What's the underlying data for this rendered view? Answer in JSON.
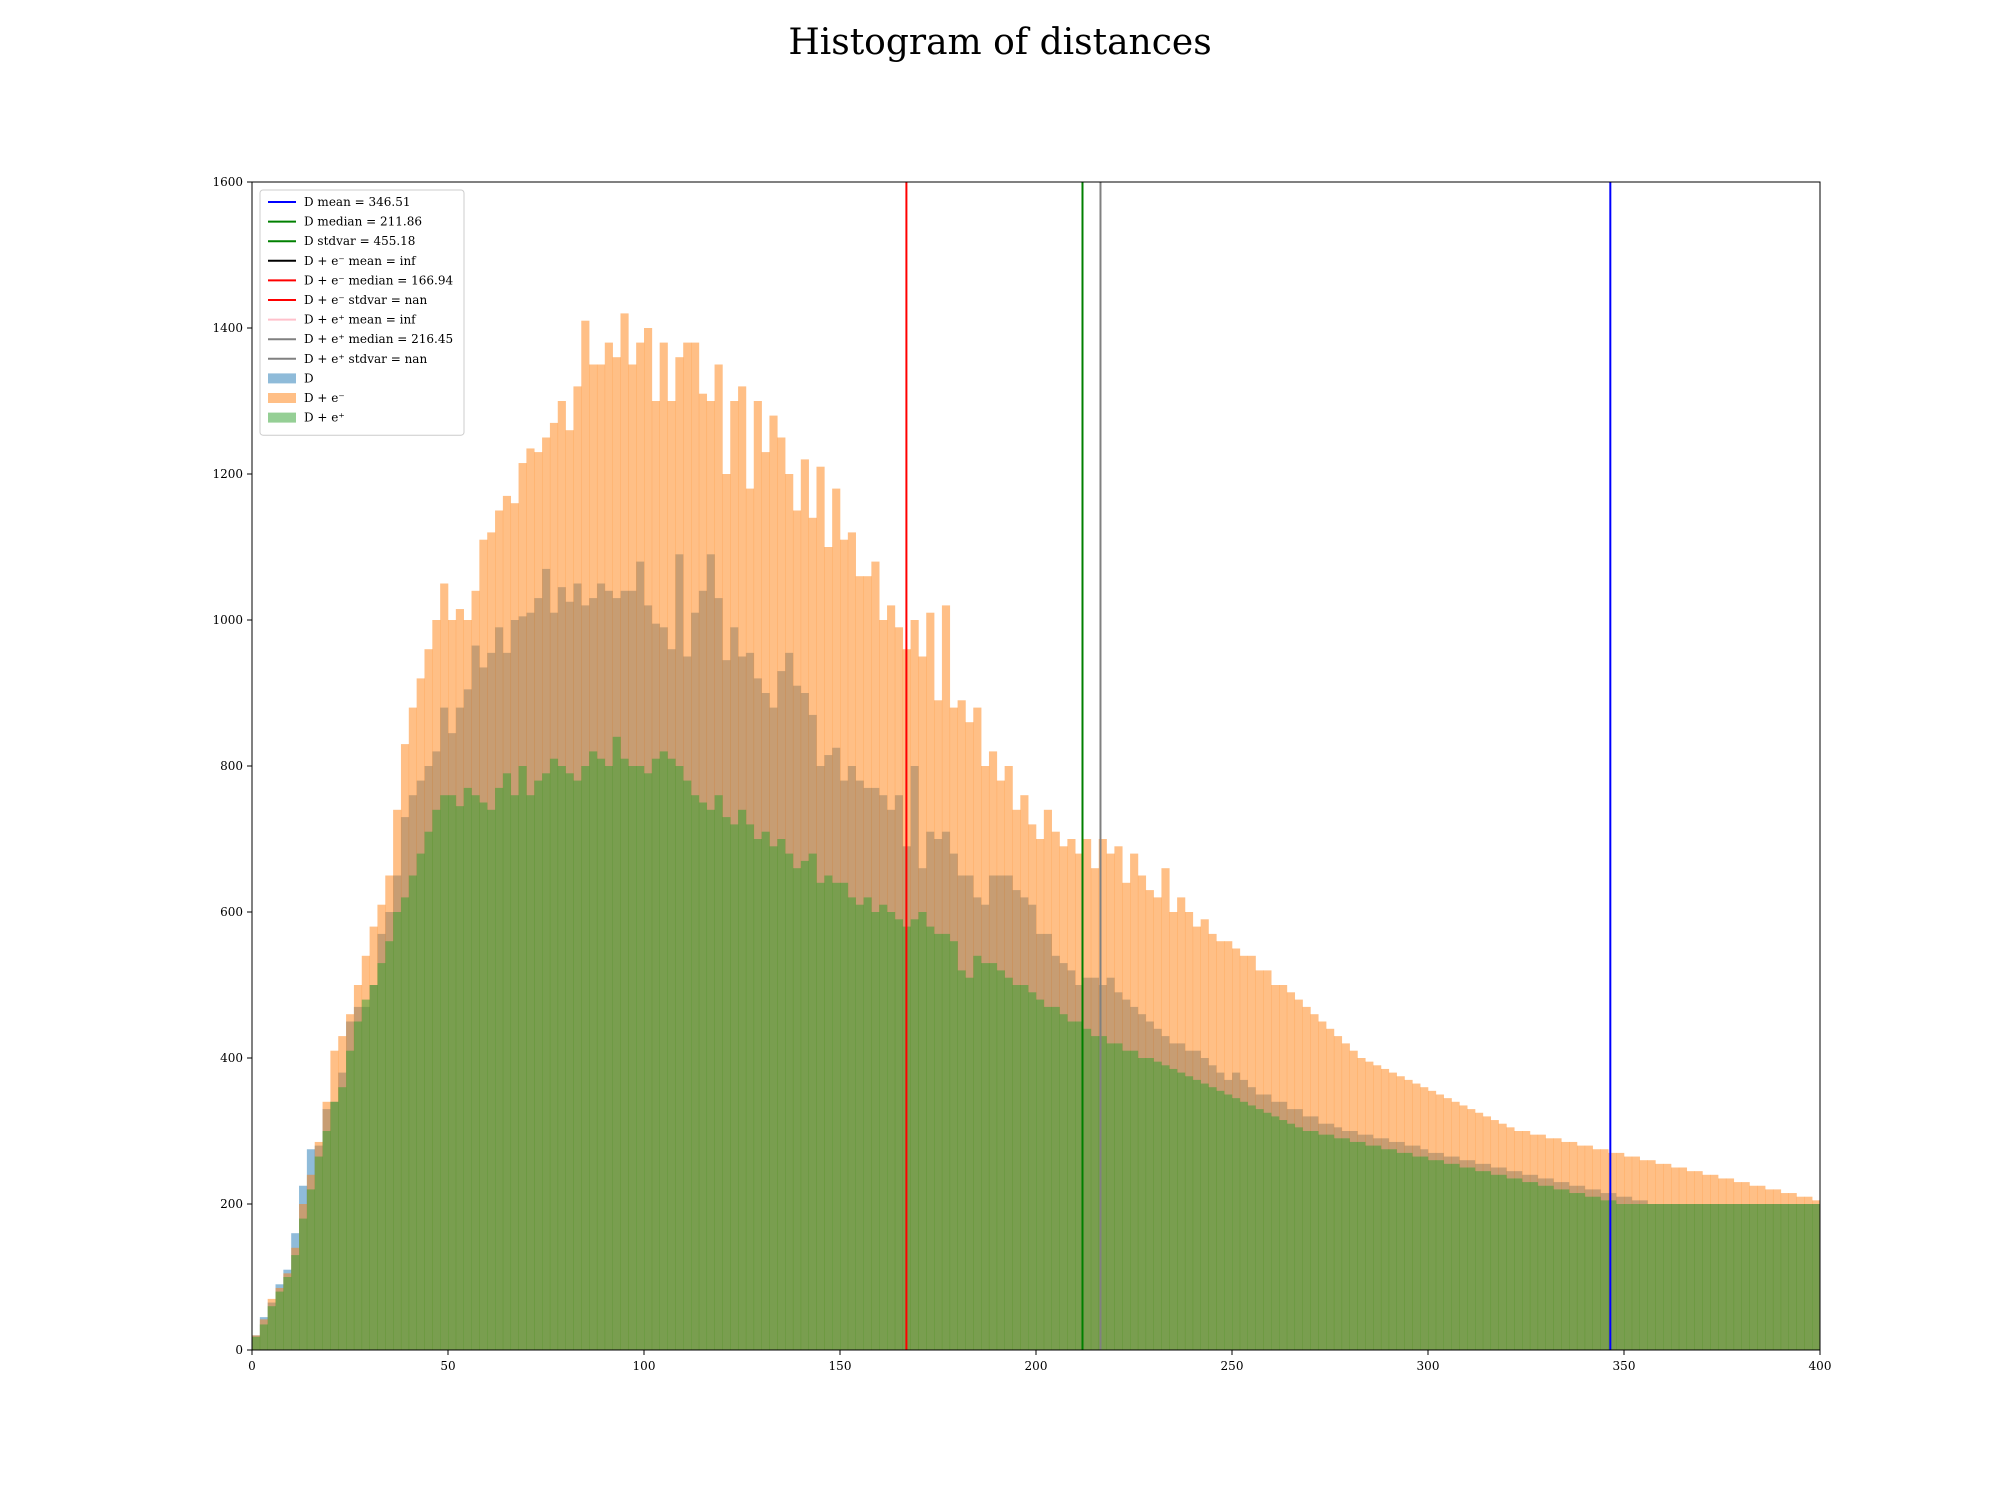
{
  "chart_data": {
    "type": "bar",
    "title": "Histogram of distances",
    "xlabel": "",
    "ylabel": "",
    "xlim": [
      0,
      400
    ],
    "ylim": [
      0,
      1600
    ],
    "xticks": [
      0,
      50,
      100,
      150,
      200,
      250,
      300,
      350,
      400
    ],
    "yticks": [
      0,
      200,
      400,
      600,
      800,
      1000,
      1200,
      1400,
      1600
    ],
    "bin_width": 2,
    "bin_start": 0,
    "legend_position": "top-left",
    "grid": false,
    "vlines": [
      {
        "label": "D mean = 346.51",
        "x": 346.51,
        "color": "#0000ff"
      },
      {
        "label": "D median = 211.86",
        "x": 211.86,
        "color": "#008000"
      },
      {
        "label": "D stdvar = 455.18",
        "x": null,
        "color": "#008000"
      },
      {
        "label": "D + e⁻ mean = inf",
        "x": null,
        "color": "#000000"
      },
      {
        "label": "D + e⁻ median = 166.94",
        "x": 166.94,
        "color": "#ff0000"
      },
      {
        "label": "D + e⁻ stdvar = nan",
        "x": null,
        "color": "#ff0000"
      },
      {
        "label": "D + e⁺ mean = inf",
        "x": null,
        "color": "#ffc0cb"
      },
      {
        "label": "D + e⁺ median = 216.45",
        "x": 216.45,
        "color": "#808080"
      },
      {
        "label": "D + e⁺ stdvar = nan",
        "x": null,
        "color": "#808080"
      }
    ],
    "series": [
      {
        "name": "D",
        "color": "#1f77b4",
        "values": [
          20,
          45,
          65,
          90,
          110,
          160,
          225,
          275,
          280,
          330,
          340,
          380,
          450,
          470,
          470,
          500,
          570,
          600,
          650,
          730,
          760,
          780,
          800,
          820,
          880,
          845,
          880,
          905,
          965,
          935,
          955,
          990,
          955,
          1000,
          1005,
          1010,
          1030,
          1070,
          1010,
          1045,
          1025,
          1050,
          1020,
          1030,
          1050,
          1040,
          1030,
          1040,
          1040,
          1080,
          1020,
          995,
          990,
          960,
          1090,
          950,
          1010,
          1040,
          1090,
          1030,
          945,
          990,
          950,
          955,
          920,
          900,
          880,
          930,
          955,
          910,
          900,
          870,
          800,
          815,
          825,
          780,
          800,
          780,
          770,
          770,
          760,
          740,
          760,
          690,
          800,
          660,
          710,
          700,
          710,
          680,
          650,
          650,
          620,
          610,
          650,
          650,
          650,
          630,
          620,
          610,
          570,
          570,
          540,
          530,
          520,
          500,
          510,
          510,
          500,
          510,
          490,
          480,
          470,
          460,
          450,
          440,
          430,
          420,
          420,
          410,
          410,
          400,
          390,
          380,
          370,
          380,
          370,
          360,
          350,
          350,
          340,
          340,
          330,
          330,
          320,
          320,
          310,
          310,
          305,
          300,
          300,
          295,
          295,
          290,
          290,
          285,
          285,
          280,
          280,
          275,
          270,
          270,
          265,
          265,
          260,
          260,
          255,
          255,
          250,
          250,
          245,
          245,
          240,
          240,
          235,
          235,
          230,
          230,
          225,
          225,
          220,
          220,
          215,
          215,
          210,
          210,
          205,
          205,
          200,
          200,
          200,
          200,
          200,
          200,
          200,
          200,
          200,
          200,
          200,
          200,
          200,
          200,
          200,
          200,
          200,
          200,
          200,
          200,
          200,
          200,
          200,
          200,
          200,
          200,
          200,
          200,
          200,
          200,
          200
        ]
      },
      {
        "name": "D + e⁻",
        "color": "#ff7f0e",
        "values": [
          20,
          42,
          70,
          85,
          105,
          140,
          200,
          240,
          285,
          340,
          410,
          430,
          460,
          500,
          540,
          580,
          610,
          650,
          740,
          830,
          880,
          920,
          960,
          1000,
          1050,
          1000,
          1015,
          1000,
          1040,
          1110,
          1120,
          1150,
          1170,
          1160,
          1215,
          1235,
          1230,
          1250,
          1270,
          1300,
          1260,
          1320,
          1410,
          1350,
          1350,
          1380,
          1360,
          1420,
          1350,
          1380,
          1400,
          1300,
          1380,
          1300,
          1360,
          1380,
          1380,
          1310,
          1300,
          1350,
          1200,
          1300,
          1320,
          1180,
          1300,
          1230,
          1280,
          1250,
          1200,
          1150,
          1220,
          1140,
          1210,
          1100,
          1180,
          1110,
          1120,
          1060,
          1060,
          1080,
          1000,
          1020,
          990,
          960,
          1000,
          950,
          1010,
          890,
          1020,
          880,
          890,
          860,
          880,
          800,
          820,
          780,
          800,
          740,
          760,
          720,
          700,
          740,
          710,
          690,
          700,
          680,
          700,
          660,
          700,
          680,
          690,
          640,
          680,
          650,
          630,
          620,
          660,
          600,
          620,
          600,
          580,
          590,
          570,
          560,
          560,
          550,
          540,
          540,
          520,
          520,
          500,
          500,
          490,
          480,
          470,
          460,
          450,
          440,
          430,
          420,
          410,
          400,
          395,
          390,
          385,
          380,
          375,
          370,
          365,
          360,
          355,
          350,
          345,
          340,
          335,
          330,
          325,
          320,
          315,
          310,
          305,
          300,
          300,
          295,
          295,
          290,
          290,
          285,
          285,
          280,
          280,
          275,
          275,
          270,
          270,
          265,
          265,
          260,
          260,
          255,
          255,
          250,
          250,
          245,
          245,
          240,
          240,
          235,
          235,
          230,
          230,
          225,
          225,
          220,
          220,
          215,
          215,
          210,
          210,
          205,
          205,
          200
        ]
      },
      {
        "name": "D + e⁺",
        "color": "#2ca02c",
        "values": [
          18,
          35,
          60,
          80,
          100,
          130,
          180,
          220,
          265,
          300,
          340,
          360,
          410,
          450,
          480,
          500,
          530,
          560,
          600,
          620,
          650,
          680,
          710,
          740,
          760,
          760,
          745,
          770,
          760,
          750,
          740,
          770,
          790,
          760,
          800,
          760,
          780,
          790,
          810,
          800,
          790,
          780,
          800,
          820,
          810,
          800,
          840,
          810,
          800,
          800,
          790,
          810,
          820,
          810,
          800,
          780,
          760,
          750,
          740,
          760,
          730,
          720,
          740,
          720,
          700,
          710,
          690,
          700,
          680,
          660,
          670,
          680,
          640,
          650,
          640,
          640,
          620,
          610,
          620,
          600,
          610,
          600,
          590,
          580,
          590,
          600,
          580,
          570,
          570,
          560,
          520,
          510,
          540,
          530,
          530,
          520,
          510,
          500,
          500,
          490,
          480,
          470,
          470,
          460,
          450,
          450,
          440,
          430,
          430,
          420,
          420,
          410,
          410,
          400,
          400,
          395,
          390,
          385,
          380,
          375,
          370,
          365,
          360,
          355,
          350,
          345,
          340,
          335,
          330,
          325,
          320,
          315,
          310,
          305,
          300,
          300,
          295,
          295,
          290,
          290,
          285,
          285,
          280,
          280,
          275,
          275,
          270,
          270,
          265,
          265,
          260,
          260,
          255,
          255,
          250,
          250,
          245,
          245,
          240,
          240,
          235,
          235,
          230,
          230,
          225,
          225,
          220,
          220,
          215,
          215,
          210,
          210,
          205,
          205,
          200,
          200,
          200,
          200,
          200,
          200,
          200,
          200,
          200,
          200,
          200,
          200,
          200,
          200,
          200,
          200,
          200,
          200,
          200,
          200,
          200,
          200,
          200,
          200,
          200,
          200
        ]
      }
    ]
  }
}
